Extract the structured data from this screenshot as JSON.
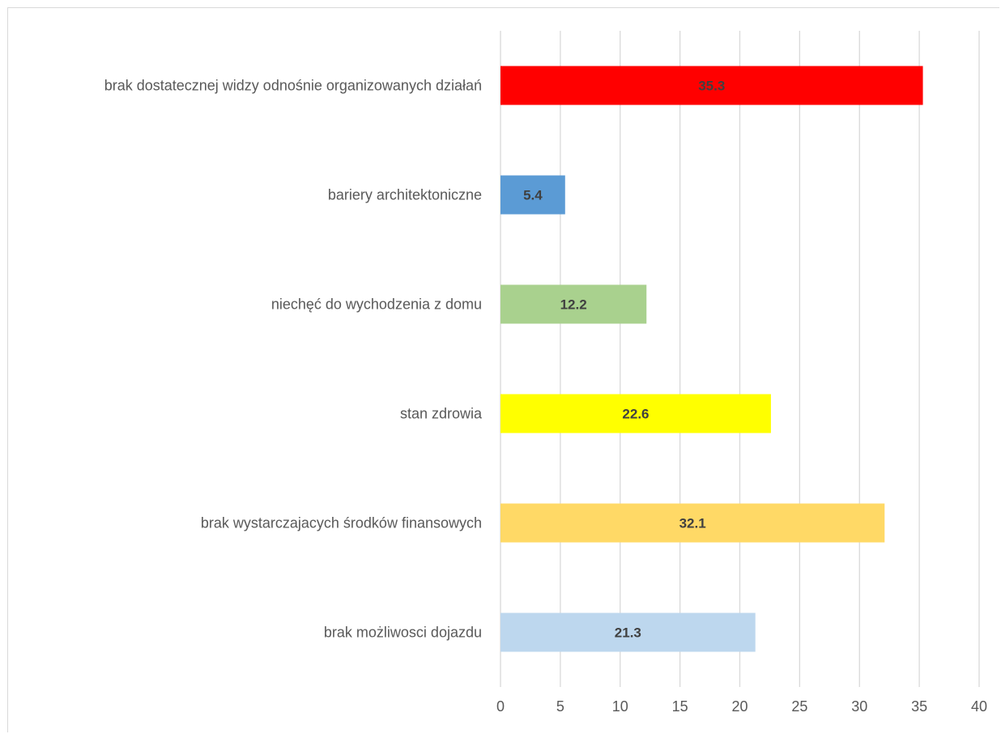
{
  "chart_data": {
    "type": "bar",
    "orientation": "horizontal",
    "categories": [
      "brak dostatecznej widzy odnośnie organizowanych działań",
      "bariery architektoniczne",
      "niechęć do wychodzenia z domu",
      "stan zdrowia",
      "brak wystarczajacych środków finansowych",
      "brak możliwosci dojazdu"
    ],
    "values": [
      35.3,
      5.4,
      12.2,
      22.6,
      32.1,
      21.3
    ],
    "data_labels": [
      "35.3",
      "5.4",
      "12.2",
      "22.6",
      "32.1",
      "21.3"
    ],
    "bar_colors": [
      "#ff0000",
      "#5b9bd5",
      "#a9d18e",
      "#ffff00",
      "#ffd966",
      "#bdd7ee"
    ],
    "x_ticks": [
      "0",
      "5",
      "10",
      "15",
      "20",
      "25",
      "30",
      "35",
      "40"
    ],
    "xlim": [
      0,
      40
    ],
    "grid": "vertical",
    "legend": "none",
    "title": "",
    "xlabel": "",
    "ylabel": ""
  }
}
